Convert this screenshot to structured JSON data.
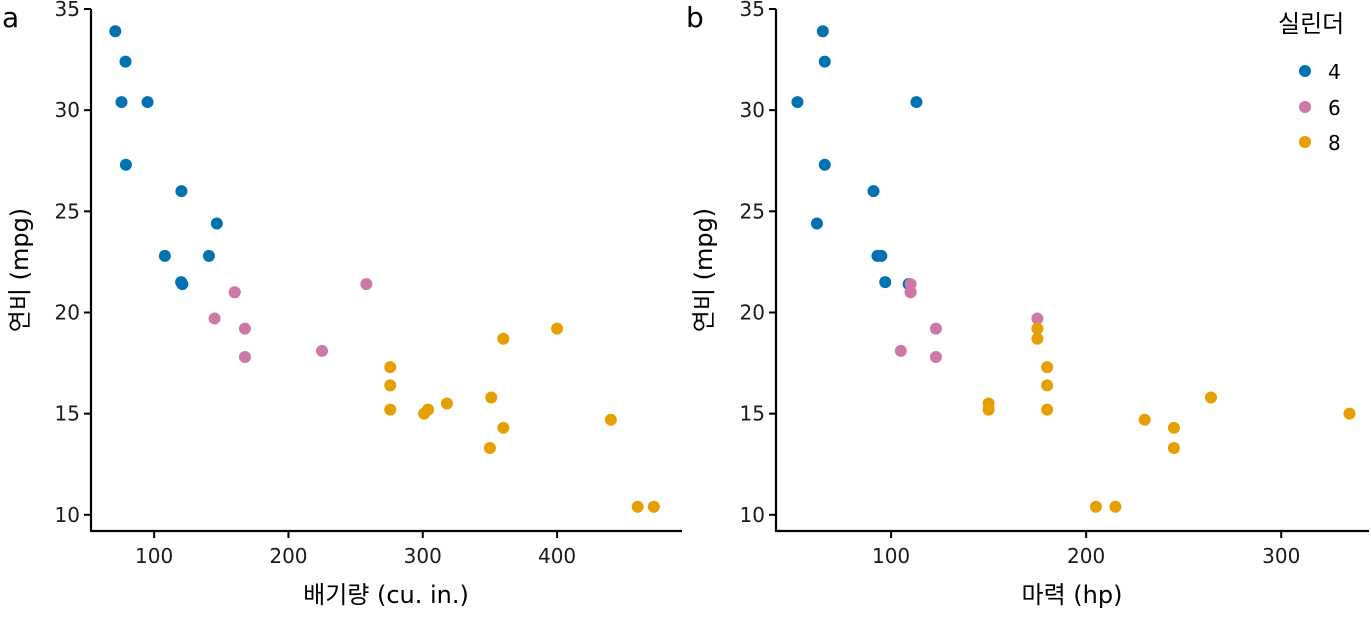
{
  "legend": {
    "title": "실린더",
    "items": [
      {
        "label": "4",
        "color": "#0072B2"
      },
      {
        "label": "6",
        "color": "#CC79A7"
      },
      {
        "label": "8",
        "color": "#E69F00"
      }
    ]
  },
  "chart_data": [
    {
      "type": "scatter",
      "panel_tag": "a",
      "title": "",
      "xlabel": "배기량 (cu. in.)",
      "ylabel": "연비 (mpg)",
      "xlim": [
        53,
        493
      ],
      "ylim": [
        9.2,
        35
      ],
      "xticks": [
        "100",
        "200",
        "300",
        "400"
      ],
      "yticks": [
        "10",
        "15",
        "20",
        "25",
        "30",
        "35"
      ],
      "grid": false,
      "legend_position": "none",
      "series": [
        {
          "name": "4",
          "x": [
            108,
            146.7,
            140.8,
            78.7,
            75.7,
            71.1,
            120.1,
            79,
            120.3,
            95.1,
            121
          ],
          "y": [
            22.8,
            24.4,
            22.8,
            32.4,
            30.4,
            33.9,
            21.5,
            27.3,
            26,
            30.4,
            21.4
          ]
        },
        {
          "name": "6",
          "x": [
            160,
            160,
            258,
            225,
            167.6,
            167.6,
            145
          ],
          "y": [
            21,
            21,
            21.4,
            18.1,
            19.2,
            17.8,
            19.7
          ]
        },
        {
          "name": "8",
          "x": [
            360,
            360,
            275.8,
            275.8,
            275.8,
            472,
            460,
            440,
            318,
            304,
            350,
            400,
            351,
            301
          ],
          "y": [
            18.7,
            14.3,
            16.4,
            17.3,
            15.2,
            10.4,
            10.4,
            14.7,
            15.5,
            15.2,
            13.3,
            19.2,
            15.8,
            15
          ]
        }
      ]
    },
    {
      "type": "scatter",
      "panel_tag": "b",
      "title": "",
      "xlabel": "마력 (hp)",
      "ylabel": "연비 (mpg)",
      "xlim": [
        41,
        345
      ],
      "ylim": [
        9.2,
        35
      ],
      "xticks": [
        "100",
        "200",
        "300"
      ],
      "yticks": [
        "10",
        "15",
        "20",
        "25",
        "30",
        "35"
      ],
      "grid": false,
      "legend_position": "right",
      "series": [
        {
          "name": "4",
          "x": [
            93,
            62,
            95,
            66,
            52,
            65,
            97,
            66,
            91,
            113,
            109
          ],
          "y": [
            22.8,
            24.4,
            22.8,
            32.4,
            30.4,
            33.9,
            21.5,
            27.3,
            26,
            30.4,
            21.4
          ]
        },
        {
          "name": "6",
          "x": [
            110,
            110,
            110,
            105,
            123,
            123,
            175
          ],
          "y": [
            21,
            21,
            21.4,
            18.1,
            19.2,
            17.8,
            19.7
          ]
        },
        {
          "name": "8",
          "x": [
            175,
            245,
            180,
            180,
            180,
            205,
            215,
            230,
            150,
            150,
            245,
            175,
            264,
            335
          ],
          "y": [
            18.7,
            14.3,
            16.4,
            17.3,
            15.2,
            10.4,
            10.4,
            14.7,
            15.5,
            15.2,
            13.3,
            19.2,
            15.8,
            15
          ]
        }
      ]
    }
  ]
}
